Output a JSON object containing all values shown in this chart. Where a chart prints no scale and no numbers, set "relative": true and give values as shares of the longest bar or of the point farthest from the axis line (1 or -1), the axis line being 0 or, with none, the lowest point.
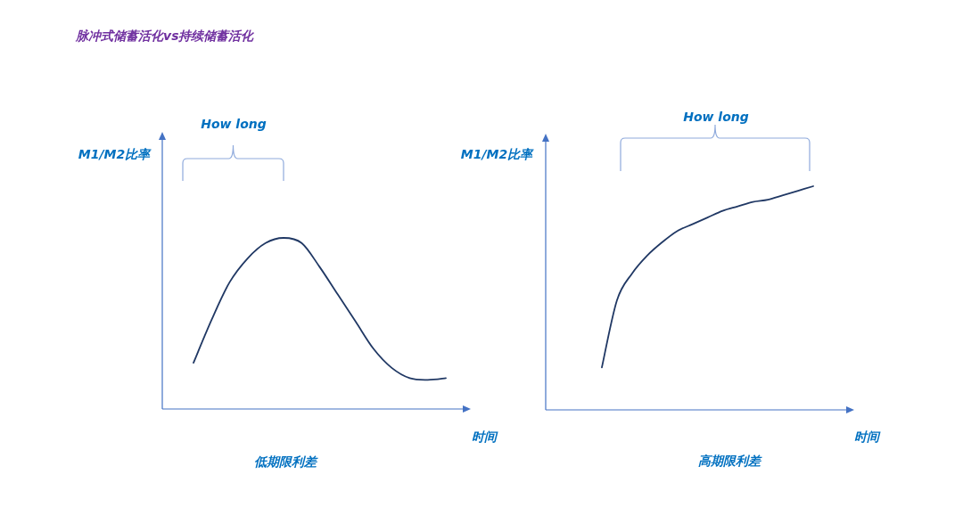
{
  "chart_data": [
    {
      "type": "line",
      "title": "脉冲式储蓄活化vs持续储蓄活化",
      "relative": true,
      "xlabel": "时间",
      "ylabel": "M1/M2比率",
      "annotations": [
        "How long",
        "低期限利差"
      ],
      "categories": [
        null,
        null,
        null,
        null,
        null,
        null,
        null,
        null,
        null,
        null,
        null,
        null,
        null,
        null,
        null
      ],
      "series": [
        {
          "color": "#203864",
          "values": [
            0.27,
            0.52,
            0.74,
            0.88,
            0.97,
            1,
            0.97,
            0.83,
            0.67,
            0.51,
            0.35,
            0.24,
            0.18,
            0.17,
            0.18
          ]
        }
      ]
    },
    {
      "type": "line",
      "relative": true,
      "xlabel": "时间",
      "ylabel": "M1/M2比率",
      "annotations": [
        "How long",
        "高期限利差"
      ],
      "categories": [
        null,
        null,
        null,
        null,
        null,
        null,
        null,
        null,
        null,
        null,
        null,
        null,
        null,
        null,
        null
      ],
      "series": [
        {
          "color": "#203864",
          "values": [
            0.19,
            0.49,
            0.61,
            0.69,
            0.75,
            0.8,
            0.83,
            0.86,
            0.89,
            0.91,
            0.93,
            0.94,
            0.96,
            0.98,
            1
          ]
        }
      ]
    }
  ]
}
